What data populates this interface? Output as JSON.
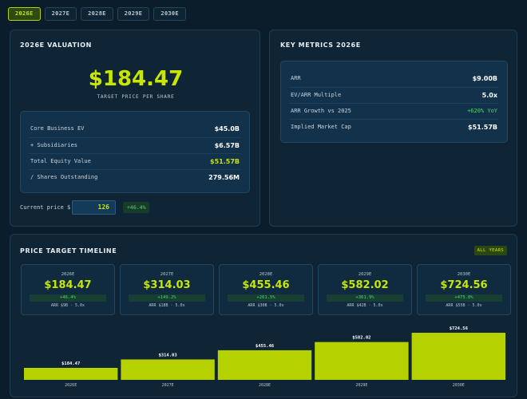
{
  "tabs": [
    "2026E",
    "2027E",
    "2028E",
    "2029E",
    "2030E"
  ],
  "active_tab": 0,
  "valuation": {
    "title": "2026E VALUATION",
    "price": "$184.47",
    "price_sub": "TARGET PRICE PER SHARE",
    "rows": [
      {
        "label": "Core Business EV",
        "value": "$45.0B"
      },
      {
        "label": "+ Subsidiaries",
        "value": "$6.57B"
      },
      {
        "label": "Total Equity Value",
        "value": "$51.57B"
      },
      {
        "label": "/ Shares Outstanding",
        "value": "279.56M"
      }
    ],
    "current_price_label": "Current price $",
    "current_price_value": "126",
    "upside": "+46.4%"
  },
  "key_metrics": {
    "title": "KEY METRICS 2026E",
    "rows": [
      {
        "label": "ARR",
        "value": "$9.00B"
      },
      {
        "label": "EV/ARR Multiple",
        "value": "5.0x"
      },
      {
        "label": "ARR Growth vs 2025",
        "value": "+620% YoY"
      },
      {
        "label": "Implied Market Cap",
        "value": "$51.57B"
      }
    ]
  },
  "timeline": {
    "title": "PRICE TARGET TIMELINE",
    "all_years_label": "ALL YEARS",
    "cards": [
      {
        "year": "2026E",
        "price": "$184.47",
        "change": "+46.4%",
        "arr": "ARR $9B · 5.0x"
      },
      {
        "year": "2027E",
        "price": "$314.03",
        "change": "+149.2%",
        "arr": "ARR $18B · 5.0x"
      },
      {
        "year": "2028E",
        "price": "$455.46",
        "change": "+261.5%",
        "arr": "ARR $30B · 5.0x"
      },
      {
        "year": "2029E",
        "price": "$582.02",
        "change": "+361.9%",
        "arr": "ARR $42B · 5.0x"
      },
      {
        "year": "2030E",
        "price": "$724.56",
        "change": "+475.0%",
        "arr": "ARR $55B · 5.0x"
      }
    ]
  },
  "chart_data": {
    "type": "bar",
    "categories": [
      "2026E",
      "2027E",
      "2028E",
      "2029E",
      "2030E"
    ],
    "values": [
      184.47,
      314.03,
      455.46,
      582.02,
      724.56
    ],
    "value_labels": [
      "$184.47",
      "$314.03",
      "$455.46",
      "$582.02",
      "$724.56"
    ],
    "title": "",
    "xlabel": "",
    "ylabel": "",
    "color": "#b5d200"
  },
  "colors": {
    "accent": "#c8e600",
    "positive": "#4fd66a",
    "background": "#0b1c2a"
  }
}
